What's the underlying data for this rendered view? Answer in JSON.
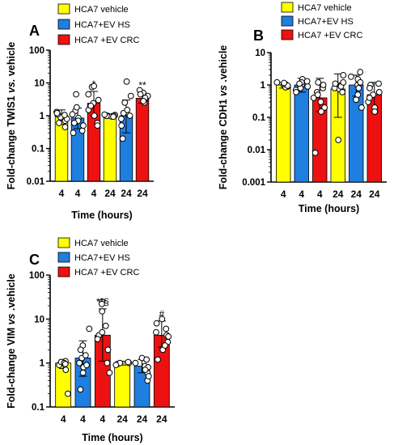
{
  "figure": {
    "legend_labels": [
      "HCA7 vehicle",
      "HCA7+EV HS",
      "HCA7 +EV CRC"
    ]
  },
  "colors": {
    "vehicle": "#ffff00",
    "ev_hs": "#1f7fe0",
    "ev_crc": "#ee1111",
    "axis": "#000000"
  },
  "chart_data": [
    {
      "panel": "A",
      "type": "bar",
      "categories": [
        "4",
        "4",
        "4",
        "24",
        "24",
        "24"
      ],
      "values": [
        1.0,
        0.85,
        2.4,
        1.0,
        1.0,
        3.4
      ],
      "error_high": [
        1.5,
        1.7,
        5.5,
        1.1,
        3.0,
        5.0
      ],
      "error_low": [
        0.55,
        0.4,
        1.0,
        0.92,
        0.3,
        2.4
      ],
      "bar_colors": [
        "vehicle",
        "ev_hs",
        "ev_crc",
        "vehicle",
        "ev_hs",
        "ev_crc"
      ],
      "points": [
        [
          1.0,
          1.3,
          0.9,
          0.7,
          1.1,
          0.45,
          1.2,
          0.8,
          0.6,
          1.05
        ],
        [
          0.85,
          4.5,
          1.4,
          0.7,
          0.3,
          1.1,
          0.35,
          0.6,
          1.8,
          0.5
        ],
        [
          2.4,
          7.5,
          3.0,
          1.5,
          0.6,
          4.5,
          1.0,
          2.0,
          8.0,
          0.5
        ],
        [
          1.0,
          1.05,
          0.95,
          1.02,
          0.98,
          1.0,
          0.93,
          1.08
        ],
        [
          1.0,
          11.0,
          4.0,
          1.2,
          0.2,
          0.5,
          2.5,
          0.8,
          1.5
        ],
        [
          3.4,
          5.0,
          3.0,
          4.0,
          2.5,
          6.0,
          3.5,
          2.8,
          4.5
        ]
      ],
      "annotations": [
        "",
        "",
        "*",
        "",
        "",
        "**"
      ],
      "scale": "log",
      "ylim": [
        0.01,
        100
      ],
      "yticks": [
        0.01,
        0.1,
        1,
        10,
        100
      ],
      "ytick_labels": [
        "0.01",
        "0.1",
        "1",
        "10",
        "100"
      ],
      "ylabel_parts": [
        "Fold-change TWIS1 ",
        "vs.",
        " vehicle"
      ],
      "xlabel": "Time (hours)",
      "legend": "top-right"
    },
    {
      "panel": "B",
      "type": "bar",
      "categories": [
        "4",
        "4",
        "4",
        "24",
        "24",
        "24"
      ],
      "values": [
        1.0,
        1.0,
        0.4,
        0.75,
        1.0,
        0.5
      ],
      "error_high": [
        1.2,
        1.6,
        1.6,
        2.2,
        2.0,
        1.2
      ],
      "error_low": [
        0.8,
        0.6,
        0.15,
        0.1,
        0.45,
        0.15
      ],
      "bar_colors": [
        "vehicle",
        "ev_hs",
        "ev_crc",
        "vehicle",
        "ev_hs",
        "ev_crc"
      ],
      "points": [
        [
          1.0,
          1.1,
          0.9,
          1.2,
          0.85,
          1.05,
          0.95,
          1.15
        ],
        [
          1.0,
          1.5,
          0.7,
          1.2,
          0.9,
          0.8,
          1.3,
          0.6,
          1.1
        ],
        [
          0.4,
          1.2,
          0.6,
          0.3,
          0.2,
          0.8,
          0.008,
          0.15,
          1.0,
          0.5
        ],
        [
          0.75,
          2.0,
          1.0,
          0.9,
          0.02,
          0.6,
          1.2,
          0.8,
          1.1
        ],
        [
          1.0,
          2.5,
          1.5,
          0.5,
          0.2,
          0.8,
          1.8,
          0.35,
          1.2
        ],
        [
          0.5,
          1.0,
          0.8,
          0.3,
          0.2,
          0.6,
          0.15,
          0.4,
          1.1
        ]
      ],
      "annotations": [
        "",
        "",
        "",
        "",
        "",
        ""
      ],
      "scale": "log",
      "ylim": [
        0.001,
        10
      ],
      "yticks": [
        0.001,
        0.01,
        0.1,
        1,
        10
      ],
      "ytick_labels": [
        "0.001",
        "0.01",
        "0.1",
        "1",
        "10"
      ],
      "ylabel_parts": [
        "Fold-change CDH1 ",
        "vs",
        " .vehicle"
      ],
      "xlabel": "Time (hours)",
      "legend": "top"
    },
    {
      "panel": "C",
      "type": "bar",
      "categories": [
        "4",
        "4",
        "4",
        "24",
        "24",
        "24"
      ],
      "values": [
        1.0,
        1.3,
        4.3,
        1.0,
        0.85,
        4.3
      ],
      "error_high": [
        1.2,
        3.2,
        17.0,
        1.1,
        1.2,
        9.0
      ],
      "error_low": [
        0.75,
        0.5,
        1.1,
        0.9,
        0.6,
        2.3
      ],
      "bar_colors": [
        "vehicle",
        "ev_hs",
        "ev_crc",
        "vehicle",
        "ev_hs",
        "ev_crc"
      ],
      "points": [
        [
          1.0,
          1.1,
          0.9,
          1.05,
          0.7,
          0.2,
          1.0,
          0.95
        ],
        [
          1.3,
          6.0,
          2.5,
          1.0,
          0.8,
          0.25,
          1.5,
          0.6,
          2.0,
          0.9
        ],
        [
          4.3,
          25.0,
          22.0,
          15.0,
          5.0,
          2.0,
          1.0,
          0.6,
          3.5,
          7.0
        ],
        [
          1.0,
          1.05,
          0.95,
          1.0,
          0.9
        ],
        [
          0.85,
          1.3,
          1.0,
          0.6,
          0.4,
          0.8,
          0.5,
          1.2,
          0.7
        ],
        [
          4.3,
          10.0,
          8.0,
          6.0,
          3.0,
          2.0,
          1.2,
          4.0,
          5.0,
          2.5
        ]
      ],
      "annotations": [
        "",
        "",
        "**§",
        "",
        "",
        "#"
      ],
      "scale": "log",
      "ylim": [
        0.1,
        100
      ],
      "yticks": [
        0.1,
        1,
        10,
        100
      ],
      "ytick_labels": [
        "0.1",
        "1",
        "10",
        "100"
      ],
      "ylabel_parts": [
        "Fold-change VIM ",
        "vs",
        " .vehicle"
      ],
      "xlabel": "Time (hours)",
      "legend": "top"
    }
  ]
}
